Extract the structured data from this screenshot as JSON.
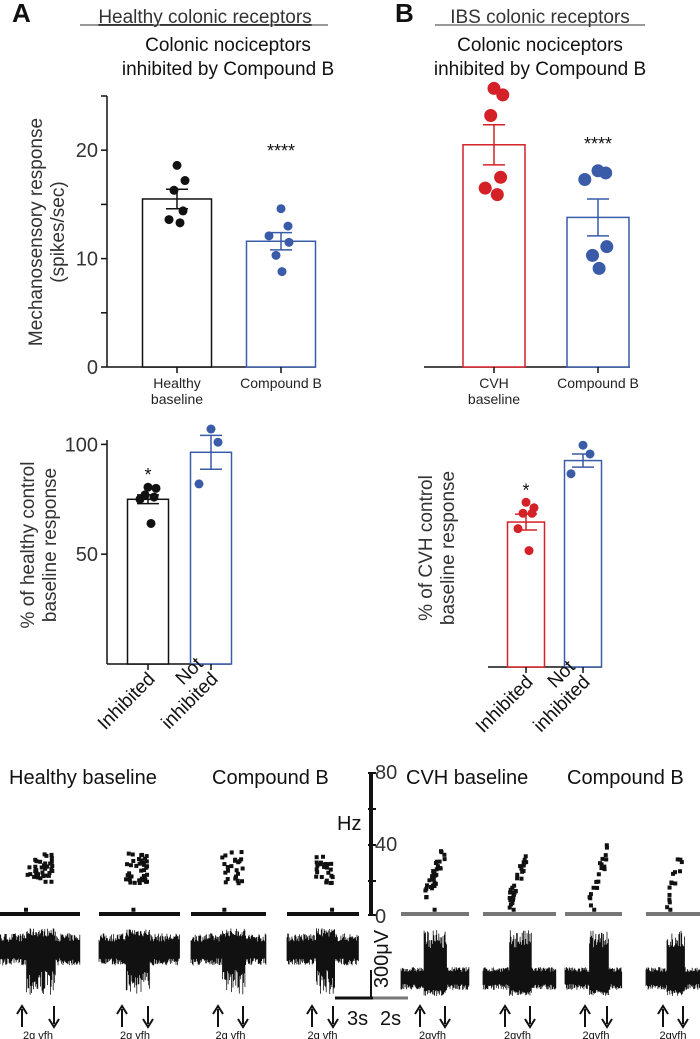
{
  "colors": {
    "black": "#111111",
    "red": "#d42027",
    "blue": "#3a5ba8",
    "grey": "#777777"
  },
  "panels": {
    "A": {
      "letter": "A",
      "heading": "Healthy colonic receptors",
      "subtitle": [
        "Colonic nociceptors",
        "inhibited by Compound B"
      ]
    },
    "B": {
      "letter": "B",
      "heading": "IBS colonic receptors",
      "subtitle": [
        "Colonic nociceptors",
        "inhibited by Compound B"
      ]
    }
  },
  "chart_data": [
    {
      "id": "A-top",
      "type": "bar",
      "ylabel": [
        "Mechanosensory response",
        "(spikes/sec)"
      ],
      "ylim": [
        0,
        25
      ],
      "yticks": [
        0,
        10,
        20
      ],
      "yminor": [
        5,
        15,
        25
      ],
      "categories": [
        [
          "Healthy",
          "baseline"
        ],
        [
          "Compound B"
        ]
      ],
      "bars": [
        {
          "mean": 15.5,
          "sem": 0.9,
          "color": "black",
          "points": [
            18.6,
            17.2,
            16.3,
            14.4,
            13.6,
            13.3
          ],
          "sig": ""
        },
        {
          "mean": 11.6,
          "sem": 0.8,
          "color": "blue",
          "points": [
            14.6,
            13.0,
            12.1,
            11.5,
            10.3,
            8.8
          ],
          "sig": "****"
        }
      ]
    },
    {
      "id": "B-top",
      "type": "bar",
      "ylim": [
        0,
        25
      ],
      "categories": [
        [
          "CVH",
          "baseline"
        ],
        [
          "Compound B"
        ]
      ],
      "bars": [
        {
          "mean": 20.5,
          "sem": 1.85,
          "color": "red",
          "points": [
            25.7,
            25.1,
            23.2,
            17.5,
            16.5,
            15.9
          ],
          "sig": ""
        },
        {
          "mean": 13.8,
          "sem": 1.7,
          "color": "blue",
          "points": [
            18.1,
            17.9,
            17.3,
            11.1,
            10.3,
            9.1
          ],
          "sig": "****"
        }
      ]
    },
    {
      "id": "A-bottom",
      "type": "bar",
      "ylabel": [
        "% of healthy control",
        "baseline response"
      ],
      "ylim": [
        0,
        102
      ],
      "yticks": [
        50,
        100
      ],
      "categories": [
        [
          "Inhibited"
        ],
        [
          "Not",
          "inhibited"
        ]
      ],
      "bars": [
        {
          "mean": 75,
          "sem": 2.0,
          "color": "black",
          "points": [
            80.5,
            80,
            77,
            76,
            75,
            64
          ],
          "sig": "*"
        },
        {
          "mean": 96.4,
          "sem": 7.7,
          "color": "blue",
          "points": [
            107,
            101,
            82
          ],
          "sig": ""
        }
      ]
    },
    {
      "id": "B-bottom",
      "type": "bar",
      "ylabel": [
        "% of CVH control",
        "baseline response"
      ],
      "ylim": [
        0,
        102
      ],
      "categories": [
        [
          "Inhibited"
        ],
        [
          "Not",
          "inhibited"
        ]
      ],
      "bars": [
        {
          "mean": 66,
          "sem": 3.6,
          "color": "red",
          "points": [
            75,
            72.5,
            70,
            70,
            63,
            53
          ],
          "sig": "*"
        },
        {
          "mean": 94,
          "sem": 3.0,
          "color": "blue",
          "points": [
            101,
            97,
            88
          ],
          "sig": ""
        }
      ]
    }
  ],
  "traces": {
    "titles": [
      "Healthy baseline",
      "Compound B",
      "CVH baseline",
      "Compound B"
    ],
    "hz_axis": {
      "label": "Hz",
      "ticks": [
        "0",
        "40",
        "80"
      ]
    },
    "scale": {
      "voltage": "300μV",
      "time_black": "3s",
      "time_grey": "2s"
    },
    "stimulus_labels": [
      "2g vfh",
      "2g vfh",
      "2g vfh",
      "2g vfh",
      "2gvfh",
      "2gvfh",
      "2gvfh",
      "2gvfh"
    ]
  }
}
